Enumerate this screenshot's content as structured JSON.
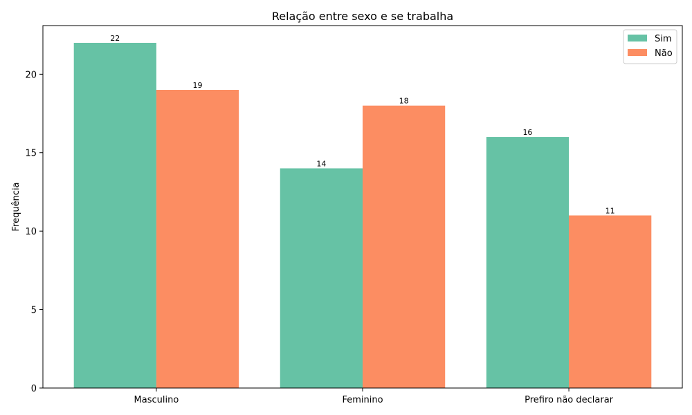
{
  "chart_data": {
    "type": "bar",
    "title": "Relação entre sexo e se trabalha",
    "xlabel": "",
    "ylabel": "Frequência",
    "categories": [
      "Masculino",
      "Feminino",
      "Prefiro não declarar"
    ],
    "series": [
      {
        "name": "Sim",
        "values": [
          22,
          14,
          16
        ],
        "color": "#66c2a5"
      },
      {
        "name": "Não",
        "values": [
          19,
          18,
          11
        ],
        "color": "#fc8d62"
      }
    ],
    "ylim": [
      0,
      23.1
    ],
    "yticks": [
      0,
      5,
      10,
      15,
      20
    ],
    "grid": false,
    "legend_position": "top-right",
    "data_labels": true
  }
}
